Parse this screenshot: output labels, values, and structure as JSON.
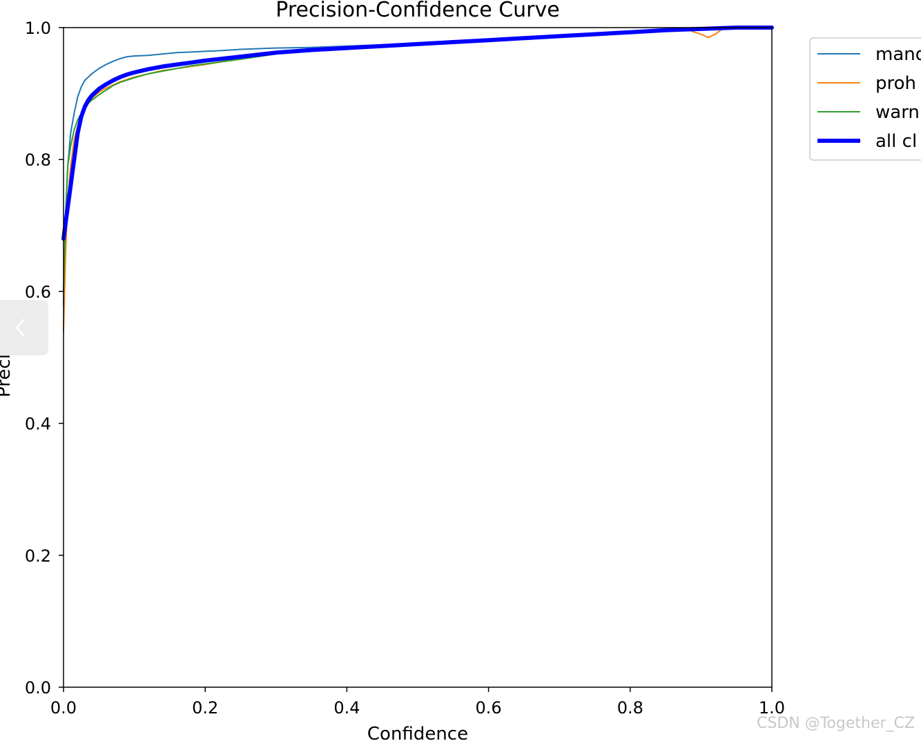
{
  "chart_data": {
    "type": "line",
    "title": "Precision-Confidence Curve",
    "xlabel": "Confidence",
    "ylabel": "Precision",
    "xlim": [
      0,
      1
    ],
    "ylim": [
      0,
      1
    ],
    "x_ticks": [
      "0.0",
      "0.2",
      "0.4",
      "0.6",
      "0.8",
      "1.0"
    ],
    "y_ticks": [
      "0.0",
      "0.2",
      "0.4",
      "0.6",
      "0.8",
      "1.0"
    ],
    "grid": false,
    "legend": "upper-right-outside",
    "series": [
      {
        "name": "mand",
        "color": "#1f77b4",
        "x": [
          0.0,
          0.003,
          0.006,
          0.01,
          0.015,
          0.02,
          0.025,
          0.03,
          0.035,
          0.04,
          0.05,
          0.06,
          0.07,
          0.08,
          0.09,
          0.1,
          0.12,
          0.14,
          0.16,
          0.18,
          0.2,
          0.22,
          0.25,
          0.3,
          0.35,
          0.4,
          0.45,
          0.5,
          0.55,
          0.6,
          0.65,
          0.7,
          0.75,
          0.8,
          0.85,
          0.9,
          0.95,
          1.0
        ],
        "y": [
          0.58,
          0.72,
          0.79,
          0.84,
          0.87,
          0.895,
          0.91,
          0.92,
          0.925,
          0.93,
          0.938,
          0.944,
          0.949,
          0.953,
          0.956,
          0.957,
          0.958,
          0.96,
          0.962,
          0.963,
          0.964,
          0.965,
          0.967,
          0.969,
          0.97,
          0.972,
          0.974,
          0.976,
          0.978,
          0.981,
          0.984,
          0.987,
          0.99,
          0.994,
          0.997,
          0.999,
          1.0,
          1.0
        ]
      },
      {
        "name": "proh",
        "color": "#ff7f0e",
        "x": [
          0.0,
          0.003,
          0.006,
          0.01,
          0.015,
          0.02,
          0.025,
          0.03,
          0.035,
          0.04,
          0.05,
          0.06,
          0.07,
          0.08,
          0.1,
          0.12,
          0.14,
          0.16,
          0.18,
          0.2,
          0.25,
          0.3,
          0.35,
          0.4,
          0.45,
          0.5,
          0.55,
          0.6,
          0.65,
          0.7,
          0.75,
          0.8,
          0.85,
          0.88,
          0.9,
          0.91,
          0.92,
          0.93,
          0.95,
          1.0
        ],
        "y": [
          0.54,
          0.66,
          0.74,
          0.79,
          0.83,
          0.85,
          0.865,
          0.875,
          0.885,
          0.893,
          0.902,
          0.908,
          0.913,
          0.918,
          0.925,
          0.93,
          0.935,
          0.938,
          0.941,
          0.944,
          0.953,
          0.961,
          0.966,
          0.969,
          0.972,
          0.975,
          0.978,
          0.981,
          0.984,
          0.987,
          0.99,
          0.993,
          0.996,
          0.997,
          0.99,
          0.985,
          0.99,
          0.998,
          1.0,
          1.0
        ]
      },
      {
        "name": "warn",
        "color": "#2ca02c",
        "x": [
          0.0,
          0.003,
          0.006,
          0.01,
          0.015,
          0.02,
          0.025,
          0.03,
          0.035,
          0.04,
          0.05,
          0.06,
          0.07,
          0.08,
          0.1,
          0.12,
          0.14,
          0.16,
          0.18,
          0.2,
          0.25,
          0.3,
          0.35,
          0.4,
          0.45,
          0.5,
          0.55,
          0.58,
          0.6,
          0.65,
          0.7,
          0.75,
          0.8,
          0.85,
          0.9,
          0.95,
          1.0
        ],
        "y": [
          0.6,
          0.72,
          0.79,
          0.82,
          0.845,
          0.86,
          0.87,
          0.878,
          0.885,
          0.89,
          0.898,
          0.905,
          0.912,
          0.917,
          0.924,
          0.93,
          0.934,
          0.938,
          0.942,
          0.945,
          0.952,
          0.96,
          0.966,
          0.97,
          0.973,
          0.975,
          0.977,
          0.978,
          0.981,
          0.984,
          0.987,
          0.99,
          0.993,
          0.996,
          0.999,
          1.0,
          1.0
        ]
      },
      {
        "name": "all cl",
        "color": "#0000ff",
        "x": [
          0.0,
          0.005,
          0.01,
          0.015,
          0.02,
          0.025,
          0.03,
          0.035,
          0.04,
          0.05,
          0.06,
          0.07,
          0.08,
          0.09,
          0.1,
          0.12,
          0.14,
          0.16,
          0.18,
          0.2,
          0.25,
          0.3,
          0.35,
          0.4,
          0.45,
          0.5,
          0.55,
          0.6,
          0.65,
          0.7,
          0.75,
          0.8,
          0.85,
          0.9,
          0.95,
          1.0
        ],
        "y": [
          0.68,
          0.72,
          0.76,
          0.8,
          0.84,
          0.865,
          0.88,
          0.89,
          0.897,
          0.907,
          0.914,
          0.92,
          0.925,
          0.929,
          0.932,
          0.937,
          0.941,
          0.944,
          0.947,
          0.95,
          0.956,
          0.962,
          0.966,
          0.969,
          0.972,
          0.975,
          0.978,
          0.981,
          0.984,
          0.987,
          0.99,
          0.993,
          0.996,
          0.998,
          1.0,
          1.0
        ]
      }
    ]
  },
  "watermark": "CSDN @Together_CZ",
  "side_tab": {
    "icon": "chevron-left-icon"
  }
}
